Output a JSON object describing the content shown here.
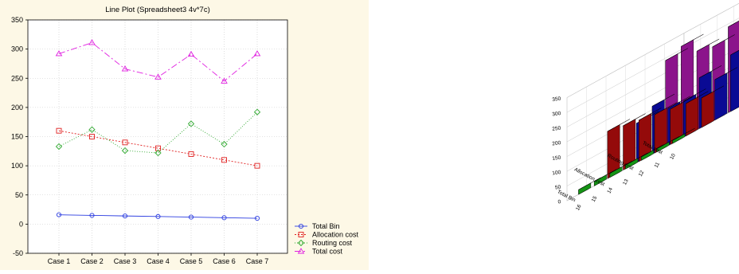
{
  "chart_data": [
    {
      "type": "line",
      "title": "Line Plot (Spreadsheet3 4v*7c)",
      "categories": [
        "Case 1",
        "Case 2",
        "Case 3",
        "Case 4",
        "Case 5",
        "Case 6",
        "Case 7"
      ],
      "ylim": [
        -50,
        350
      ],
      "yticks": [
        -50,
        0,
        50,
        100,
        150,
        200,
        250,
        300,
        350
      ],
      "grid": true,
      "legend_position": "bottom-right",
      "series": [
        {
          "name": "Total Bin",
          "values": [
            16,
            15,
            14,
            13,
            12,
            11,
            10
          ],
          "color": "#2b3ce0",
          "marker": "circle",
          "dash": "solid"
        },
        {
          "name": "Allocation cost",
          "values": [
            160,
            150,
            140,
            130,
            120,
            110,
            100
          ],
          "color": "#e02020",
          "marker": "square",
          "dash": "2,2"
        },
        {
          "name": "Routing cost",
          "values": [
            133,
            162,
            126,
            122,
            172,
            137,
            192
          ],
          "color": "#2ea82e",
          "marker": "diamond",
          "dash": "1,2"
        },
        {
          "name": "Total cost",
          "values": [
            292,
            311,
            266,
            252,
            291,
            245,
            292
          ],
          "color": "#e020e0",
          "marker": "triangle",
          "dash": "8,3,2,3"
        }
      ]
    },
    {
      "type": "bar",
      "view": "3d",
      "zticks": [
        0,
        50,
        100,
        150,
        200,
        250,
        300,
        350
      ],
      "series_axis_labels": [
        "Total cost",
        "Routing cost",
        "Allocation cost",
        "Total Bin"
      ],
      "category_axis_labels": [
        "16",
        "15",
        "14",
        "13",
        "12",
        "11",
        "10"
      ],
      "series": [
        {
          "name": "Total cost",
          "values": [
            292,
            311,
            266,
            252,
            291,
            245,
            292
          ],
          "color": "#e020e0"
        },
        {
          "name": "Routing cost",
          "values": [
            133,
            162,
            126,
            122,
            172,
            137,
            192
          ],
          "color": "#1010ee"
        },
        {
          "name": "Allocation cost",
          "values": [
            160,
            150,
            140,
            130,
            120,
            110,
            100
          ],
          "color": "#ee1010"
        },
        {
          "name": "Total Bin",
          "values": [
            16,
            15,
            14,
            13,
            12,
            11,
            10
          ],
          "color": "#22ee22"
        }
      ]
    }
  ]
}
